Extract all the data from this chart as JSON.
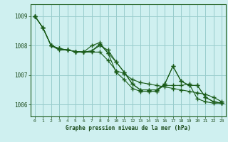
{
  "bg_color": "#cff0f0",
  "grid_color": "#99cccc",
  "line_color": "#1a5c1a",
  "marker_color": "#1a5c1a",
  "xlabel": "Graphe pression niveau de la mer (hPa)",
  "xlabel_color": "#1a4a1a",
  "tick_color": "#1a4a1a",
  "xlim": [
    -0.5,
    23.5
  ],
  "ylim": [
    1005.6,
    1009.4
  ],
  "yticks": [
    1006,
    1007,
    1008,
    1009
  ],
  "xticks": [
    0,
    1,
    2,
    3,
    4,
    5,
    6,
    7,
    8,
    9,
    10,
    11,
    12,
    13,
    14,
    15,
    16,
    17,
    18,
    19,
    20,
    21,
    22,
    23
  ],
  "series": [
    [
      1009.0,
      1008.6,
      1008.0,
      1007.9,
      1007.85,
      1007.8,
      1007.78,
      1007.82,
      1008.05,
      1007.75,
      1007.1,
      1006.85,
      1006.55,
      1006.45,
      1006.45,
      1006.45,
      1006.7,
      1007.3,
      1006.8,
      1006.65,
      1006.65,
      1006.25,
      1006.1,
      1006.05
    ],
    [
      1009.0,
      1008.6,
      1008.0,
      1007.9,
      1007.85,
      1007.8,
      1007.78,
      1008.0,
      1008.1,
      1007.75,
      1007.45,
      1007.1,
      1006.7,
      1006.5,
      1006.5,
      1006.5,
      1006.65,
      1006.65,
      1006.65,
      1006.7,
      1006.2,
      1006.1,
      1006.05,
      1006.05
    ],
    [
      1009.0,
      1008.6,
      1008.0,
      1007.9,
      1007.85,
      1007.8,
      1007.78,
      1007.82,
      1008.0,
      1007.85,
      1007.45,
      1007.1,
      1006.7,
      1006.5,
      1006.5,
      1006.5,
      1006.7,
      1007.3,
      1006.8,
      1006.65,
      1006.65,
      1006.25,
      1006.1,
      1006.05
    ],
    [
      1009.0,
      1008.6,
      1008.0,
      1007.85,
      1007.85,
      1007.8,
      1007.78,
      1007.78,
      1007.78,
      1007.5,
      1007.15,
      1007.05,
      1006.85,
      1006.75,
      1006.7,
      1006.65,
      1006.6,
      1006.55,
      1006.5,
      1006.45,
      1006.4,
      1006.35,
      1006.25,
      1006.1
    ]
  ]
}
